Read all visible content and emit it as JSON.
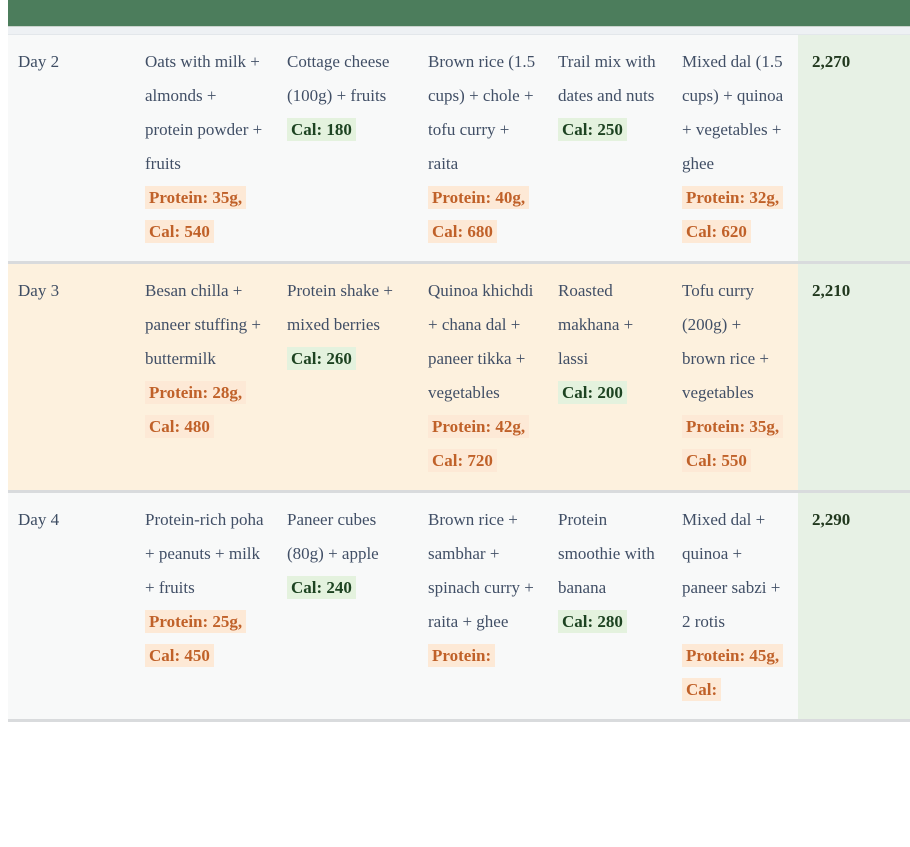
{
  "colors": {
    "header_green": "#4c7d5c",
    "row_light_bg": "#f8f9f9",
    "row_cream_bg": "#fdf1de",
    "total_column_bg": "#e7f1e5",
    "body_text": "#414f66",
    "protein_highlight_bg": "#fde9d6",
    "protein_highlight_text": "#c06129",
    "cal_highlight_bg": "#e4f2de",
    "cal_highlight_text": "#1d4321",
    "total_text": "#22391f",
    "row_border": "#d9dbdd"
  },
  "table": {
    "rows": [
      {
        "day": "Day 2",
        "total": "2,270",
        "meals": [
          {
            "desc": "Oats with milk + almonds + protein powder + fruits",
            "macro": "Protein: 35g, Cal: 540"
          },
          {
            "desc": "Cottage cheese (100g) + fruits",
            "macro": "Cal: 180"
          },
          {
            "desc": "Brown rice (1.5 cups) + chole + tofu curry + raita",
            "macro": "Protein: 40g, Cal: 680"
          },
          {
            "desc": "Trail mix with dates and nuts",
            "macro": "Cal: 250"
          },
          {
            "desc": "Mixed dal (1.5 cups) + quinoa + vegetables + ghee",
            "macro": "Protein: 32g, Cal: 620"
          }
        ]
      },
      {
        "day": "Day 3",
        "total": "2,210",
        "meals": [
          {
            "desc": "Besan chilla + paneer stuffing + buttermilk",
            "macro": "Protein: 28g, Cal: 480"
          },
          {
            "desc": "Protein shake + mixed berries",
            "macro": "Cal: 260"
          },
          {
            "desc": "Quinoa khichdi + chana dal + paneer tikka + vegetables",
            "macro": "Protein: 42g, Cal: 720"
          },
          {
            "desc": "Roasted makhana + lassi",
            "macro": "Cal: 200"
          },
          {
            "desc": "Tofu curry (200g) + brown rice + vegetables",
            "macro": "Protein: 35g, Cal: 550"
          }
        ]
      },
      {
        "day": "Day 4",
        "total": "2,290",
        "meals": [
          {
            "desc": "Protein-rich poha + peanuts + milk + fruits",
            "macro": "Protein: 25g, Cal: 450"
          },
          {
            "desc": "Paneer cubes (80g) + apple",
            "macro": "Cal: 240"
          },
          {
            "desc": "Brown rice + sambhar + spinach curry + raita + ghee",
            "macro": "Protein:"
          },
          {
            "desc": "Protein smoothie with banana",
            "macro": "Cal: 280"
          },
          {
            "desc": "Mixed dal + quinoa + paneer sabzi + 2 rotis",
            "macro": "Protein: 45g, Cal:"
          }
        ]
      }
    ]
  }
}
